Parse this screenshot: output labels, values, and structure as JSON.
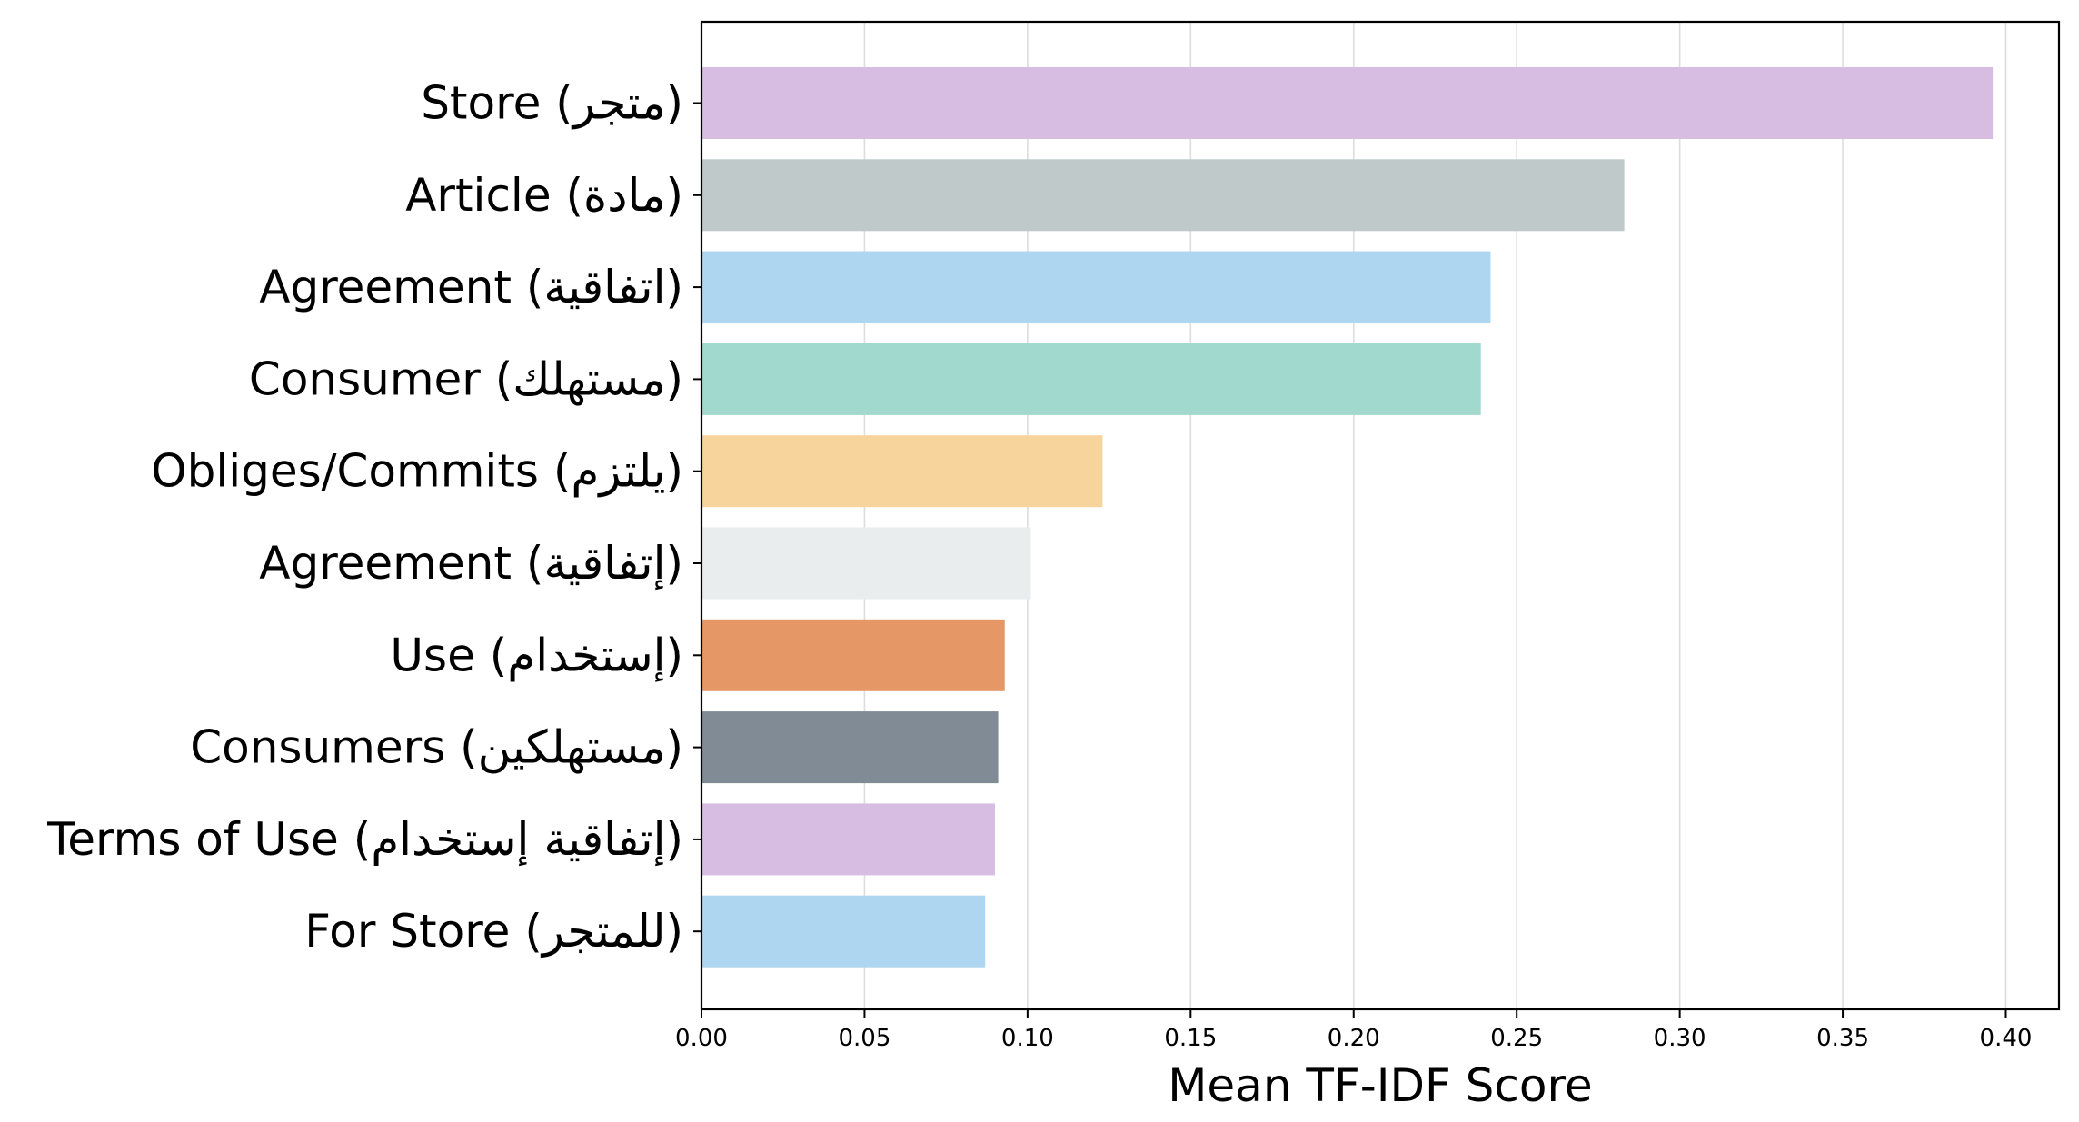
{
  "chart_data": {
    "type": "bar",
    "orientation": "horizontal",
    "xlabel": "Mean TF-IDF Score",
    "ylabel": "",
    "xlim": [
      0,
      0.4163
    ],
    "xticks": [
      "0.00",
      "0.05",
      "0.10",
      "0.15",
      "0.20",
      "0.25",
      "0.30",
      "0.35",
      "0.40"
    ],
    "grid": "vertical",
    "categories": [
      "Store (متجر)",
      "Article (مادة)",
      "Agreement (اتفاقية)",
      "Consumer (مستهلك)",
      "Obliges/Commits (يلتزم)",
      "Agreement (إتفاقية)",
      "Use (إستخدام)",
      "Consumers (مستهلكين)",
      "Terms of Use (إتفاقية إستخدام)",
      "For Store (للمتجر)"
    ],
    "values": [
      0.396,
      0.283,
      0.242,
      0.239,
      0.123,
      0.101,
      0.093,
      0.091,
      0.09,
      0.087
    ],
    "colors": [
      "#d7bde2",
      "#bfc9ca",
      "#aed6f1",
      "#a2d9ce",
      "#f8d49d",
      "#eaeded",
      "#e59866",
      "#808b96",
      "#d7bde2",
      "#aed6f1"
    ]
  }
}
